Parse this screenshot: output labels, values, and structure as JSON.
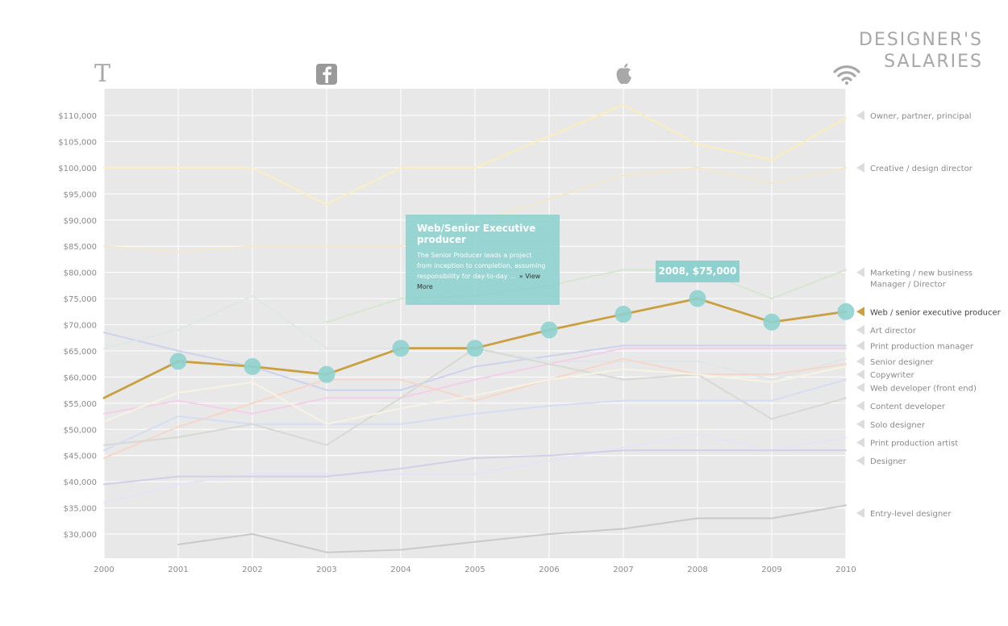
{
  "title_lines": [
    "DESIGNER'S",
    "SALARIES"
  ],
  "colors": {
    "plot_bg": "#e8e8e8",
    "grid": "#ffffff",
    "highlight": "#c9a040",
    "marker": "#8ed1cf"
  },
  "icons": {
    "t_label": "T",
    "items": [
      "typography-icon",
      "facebook-icon",
      "apple-icon",
      "wifi-icon"
    ]
  },
  "tooltip": {
    "title": "Web/Senior Executive producer",
    "body": "The Senior Producer leads a project from inception to completion, assuming responsibility for day-to-day ...",
    "more": "» View More"
  },
  "badge": {
    "text": "2008, $75,000",
    "year": 2008,
    "value": 75000
  },
  "chart_data": {
    "type": "line",
    "title": "DESIGNER'S SALARIES",
    "xlabel": "",
    "ylabel": "",
    "xlim": [
      2000,
      2010
    ],
    "ylim": [
      25000,
      113000
    ],
    "x": [
      2000,
      2001,
      2002,
      2003,
      2004,
      2005,
      2006,
      2007,
      2008,
      2009,
      2010
    ],
    "y_ticks": [
      30000,
      35000,
      40000,
      45000,
      50000,
      55000,
      60000,
      65000,
      70000,
      75000,
      80000,
      85000,
      90000,
      95000,
      100000,
      105000,
      110000
    ],
    "y_tick_labels": [
      "$30,000",
      "$35,000",
      "$40,000",
      "$45,000",
      "$50,000",
      "$55,000",
      "$60,000",
      "$65,000",
      "$70,000",
      "$75,000",
      "$80,000",
      "$85,000",
      "$90,000",
      "$95,000",
      "$100,000",
      "$105,000",
      "$110,000"
    ],
    "x_tick_labels": [
      "2000",
      "2001",
      "2002",
      "2003",
      "2004",
      "2005",
      "2006",
      "2007",
      "2008",
      "2009",
      "2010"
    ],
    "grid": true,
    "legend_position": "right",
    "highlighted_series": "Web / senior executive producer",
    "series": [
      {
        "name": "Owner, partner, principal",
        "color": "#fbeeb8",
        "legend_y": 110000,
        "values": [
          null,
          null,
          null,
          null,
          null,
          100000,
          106000,
          112000,
          104500,
          101500,
          109500
        ]
      },
      {
        "name": "Creative / design director",
        "color": "#fbefc2",
        "legend_y": 100000,
        "values": [
          100000,
          100000,
          100000,
          93000,
          100000,
          100000,
          null,
          null,
          null,
          null,
          null
        ]
      },
      {
        "name": "Creative / design director",
        "color": "#f3e8cc",
        "legend_y": null,
        "values": [
          85000,
          84000,
          85000,
          85000,
          85000,
          89500,
          94000,
          98500,
          100000,
          97000,
          100000
        ]
      },
      {
        "name": "Marketing / new business Manager / Director",
        "color": "#d6e6cf",
        "legend_y": 80000,
        "values": [
          null,
          null,
          null,
          70500,
          75000,
          75500,
          77500,
          80500,
          80500,
          75000,
          80500
        ]
      },
      {
        "name": "Web / senior executive producer",
        "color": "#c9a040",
        "legend_y": 72500,
        "values": [
          56000,
          63000,
          62000,
          60500,
          65500,
          65500,
          69000,
          72000,
          75000,
          70500,
          72500
        ]
      },
      {
        "name": "Art director",
        "color": "#cdd2ee",
        "legend_y": 69000,
        "values": [
          68500,
          65000,
          62000,
          57500,
          57500,
          62000,
          64000,
          66000,
          66000,
          66000,
          66000
        ]
      },
      {
        "name": "Print production manager",
        "color": "#dfe6e8",
        "legend_y": 66000,
        "values": [
          65500,
          69000,
          75500,
          65500,
          65500,
          65500,
          63000,
          63000,
          63000,
          59500,
          63500
        ]
      },
      {
        "name": "Senior designer",
        "color": "#f3cfe8",
        "legend_y": 63000,
        "values": [
          53000,
          55500,
          53000,
          56000,
          56000,
          59500,
          62500,
          65500,
          65500,
          65500,
          65500
        ]
      },
      {
        "name": "Copywriter",
        "color": "#f6d6c8",
        "legend_y": 60500,
        "values": [
          44500,
          50500,
          55000,
          59500,
          59500,
          55500,
          59500,
          63500,
          60500,
          60500,
          62500
        ]
      },
      {
        "name": "Web developer (front end)",
        "color": "#d5ddf2",
        "legend_y": 58000,
        "values": [
          46000,
          52500,
          51000,
          51000,
          51000,
          53000,
          54500,
          55500,
          55500,
          55500,
          59500
        ]
      },
      {
        "name": "Content developer",
        "color": "#d7d9d2",
        "legend_y": 54500,
        "values": [
          47000,
          48500,
          51000,
          47000,
          56000,
          65500,
          62500,
          59500,
          60500,
          52000,
          56000
        ]
      },
      {
        "name": "Solo designer",
        "color": "#f7f3e4",
        "legend_y": 51000,
        "values": [
          51500,
          57000,
          59000,
          51000,
          54000,
          56500,
          59500,
          61500,
          60500,
          59000,
          62000
        ]
      },
      {
        "name": "Print production artist",
        "color": "#e4e4f6",
        "legend_y": 47500,
        "values": [
          36000,
          39500,
          41500,
          41500,
          41500,
          41500,
          44000,
          46500,
          49000,
          46000,
          48500
        ]
      },
      {
        "name": "Designer",
        "color": "#d2cfe6",
        "legend_y": 44000,
        "values": [
          39500,
          41000,
          41000,
          41000,
          42500,
          44500,
          45000,
          46000,
          46000,
          46000,
          46000
        ]
      },
      {
        "name": "Entry-level designer",
        "color": "#c9c9c9",
        "legend_y": 34000,
        "values": [
          null,
          28000,
          30000,
          26500,
          27000,
          28500,
          30000,
          31000,
          33000,
          33000,
          35500
        ]
      }
    ]
  }
}
